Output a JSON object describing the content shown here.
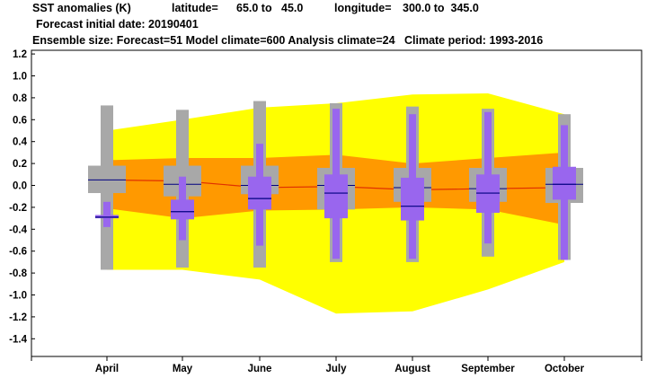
{
  "header": {
    "title": "SST anomalies (K)",
    "lat_label": "latitude=",
    "lat_range": "65.0 to   45.0",
    "lon_label": "longitude=",
    "lon_range": "300.0 to  345.0",
    "line2": "Forecast initial date: 20190401",
    "line3": "Ensemble size: Forecast=51 Model climate=600 Analysis climate=24   Climate period: 1993-2016"
  },
  "colors": {
    "outer_band": "#ffff00",
    "inner_band": "#ff9900",
    "median_line": "#e03000",
    "climate_box": "#a8a8a8",
    "forecast_box": "#9966ee",
    "median_tick": "#000080"
  },
  "chart_data": {
    "type": "box",
    "categories": [
      "April",
      "May",
      "June",
      "July",
      "August",
      "September",
      "October"
    ],
    "ylim": [
      -1.55,
      1.25
    ],
    "yticks": [
      1.2,
      1.0,
      0.8,
      0.6,
      0.4,
      0.2,
      0.0,
      -0.2,
      -0.4,
      -0.6,
      -0.8,
      -1.0,
      -1.2,
      -1.4
    ],
    "ytick_labels": [
      "1.2",
      "1.0",
      "0.8",
      "0.6",
      "0.4",
      "0.2",
      "0.0",
      "-0.2",
      "-0.4",
      "-0.6",
      "-0.8",
      "-1.0",
      "-1.2",
      "-1.4"
    ],
    "climate_band_outer": {
      "upper": [
        0.5,
        0.6,
        0.71,
        0.75,
        0.83,
        0.84,
        0.65
      ],
      "lower": [
        -0.77,
        -0.77,
        -0.86,
        -1.17,
        -1.15,
        -0.95,
        -0.7
      ]
    },
    "climate_band_inner": {
      "upper": [
        0.23,
        0.25,
        0.25,
        0.28,
        0.2,
        0.25,
        0.3
      ],
      "lower": [
        -0.21,
        -0.3,
        -0.23,
        -0.22,
        -0.2,
        -0.22,
        -0.36
      ]
    },
    "climate_median_line": [
      0.05,
      0.04,
      -0.02,
      -0.01,
      -0.04,
      -0.03,
      -0.02
    ],
    "climate_boxes": [
      {
        "whisker_low": -0.77,
        "q1": -0.07,
        "median": 0.05,
        "q3": 0.18,
        "whisker_high": 0.73
      },
      {
        "whisker_low": -0.75,
        "q1": -0.1,
        "median": 0.01,
        "q3": 0.18,
        "whisker_high": 0.69
      },
      {
        "whisker_low": -0.75,
        "q1": -0.08,
        "median": 0.0,
        "q3": 0.18,
        "whisker_high": 0.77
      },
      {
        "whisker_low": -0.7,
        "q1": -0.22,
        "median": 0.0,
        "q3": 0.16,
        "whisker_high": 0.75
      },
      {
        "whisker_low": -0.7,
        "q1": -0.15,
        "median": -0.02,
        "q3": 0.16,
        "whisker_high": 0.72
      },
      {
        "whisker_low": -0.65,
        "q1": -0.15,
        "median": -0.03,
        "q3": 0.16,
        "whisker_high": 0.7
      },
      {
        "whisker_low": -0.68,
        "q1": -0.16,
        "median": 0.01,
        "q3": 0.16,
        "whisker_high": 0.65
      }
    ],
    "forecast_boxes": [
      {
        "whisker_low": -0.38,
        "q1": -0.3,
        "median": -0.29,
        "q3": -0.27,
        "whisker_high": -0.15
      },
      {
        "whisker_low": -0.5,
        "q1": -0.31,
        "median": -0.24,
        "q3": -0.13,
        "whisker_high": 0.08
      },
      {
        "whisker_low": -0.55,
        "q1": -0.22,
        "median": -0.12,
        "q3": 0.08,
        "whisker_high": 0.38
      },
      {
        "whisker_low": -0.67,
        "q1": -0.3,
        "median": -0.07,
        "q3": 0.1,
        "whisker_high": 0.7
      },
      {
        "whisker_low": -0.67,
        "q1": -0.32,
        "median": -0.19,
        "q3": 0.07,
        "whisker_high": 0.65
      },
      {
        "whisker_low": -0.53,
        "q1": -0.25,
        "median": -0.07,
        "q3": 0.1,
        "whisker_high": 0.67
      },
      {
        "whisker_low": -0.68,
        "q1": -0.13,
        "median": 0.01,
        "q3": 0.17,
        "whisker_high": 0.55
      }
    ]
  }
}
